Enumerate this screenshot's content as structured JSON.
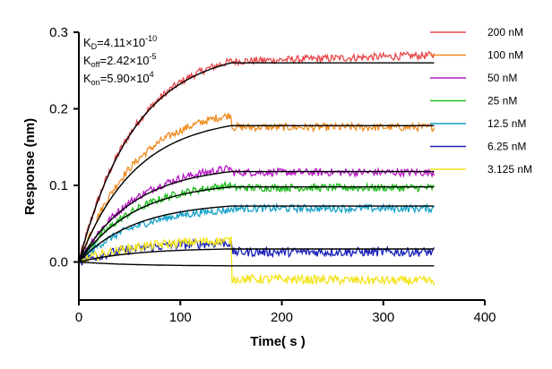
{
  "chart_data": {
    "type": "line",
    "title": "",
    "xlabel": "Time( s )",
    "ylabel": "Response (nm)",
    "xlim": [
      0,
      400
    ],
    "ylim": [
      -0.035,
      0.3
    ],
    "xticks": [
      0,
      100,
      200,
      300,
      400
    ],
    "xtick_labels": [
      "0",
      "100",
      "200",
      "300",
      "400"
    ],
    "yticks": [
      0.0,
      0.1,
      0.2,
      0.3
    ],
    "ytick_labels": [
      "0.0",
      "0.1",
      "0.2",
      "0.3"
    ],
    "grid": false,
    "legend_position": "top-right",
    "association_end_s": 150,
    "time_end_s": 350,
    "annotations": {
      "kd": {
        "label": "K",
        "sub": "D",
        "value": "=4.11×10",
        "exp": "-10"
      },
      "koff": {
        "label": "K",
        "sub": "off",
        "value": "=2.42×10",
        "exp": "-5"
      },
      "kon": {
        "label": "K",
        "sub": "on",
        "value": "=5.90×10",
        "exp": "4"
      }
    },
    "series": [
      {
        "name": "200 nM",
        "color": "#e8474a",
        "noise": 0.005,
        "fit_peak": 0.26,
        "data_peak": 0.262,
        "data_plateau": 0.262,
        "data_end": 0.27
      },
      {
        "name": "100 nM",
        "color": "#ee8a1c",
        "noise": 0.005,
        "fit_peak": 0.178,
        "data_peak": 0.192,
        "data_plateau": 0.176,
        "data_end": 0.176
      },
      {
        "name": "50 nM",
        "color": "#b619c4",
        "noise": 0.005,
        "fit_peak": 0.118,
        "data_peak": 0.122,
        "data_plateau": 0.117,
        "data_end": 0.117
      },
      {
        "name": "25 nM",
        "color": "#1fbd1f",
        "noise": 0.005,
        "fit_peak": 0.098,
        "data_peak": 0.1,
        "data_plateau": 0.097,
        "data_end": 0.097
      },
      {
        "name": "12.5 nM",
        "color": "#17a2c9",
        "noise": 0.005,
        "fit_peak": 0.073,
        "data_peak": 0.068,
        "data_plateau": 0.07,
        "data_end": 0.07
      },
      {
        "name": "6.25 nM",
        "color": "#1a22b8",
        "noise": 0.006,
        "fit_peak": 0.017,
        "data_peak": 0.025,
        "data_plateau": 0.013,
        "data_end": 0.013
      },
      {
        "name": "3.125 nM",
        "color": "#f3e31c",
        "noise": 0.006,
        "fit_peak": -0.005,
        "data_peak": 0.028,
        "data_plateau": -0.022,
        "data_end": -0.025
      }
    ]
  }
}
